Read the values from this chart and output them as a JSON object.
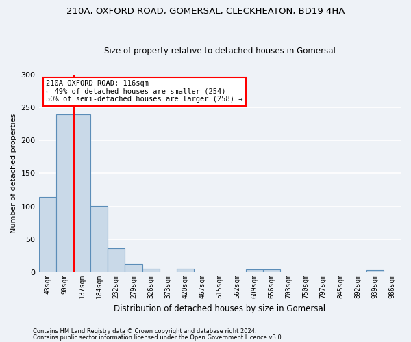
{
  "title": "210A, OXFORD ROAD, GOMERSAL, CLECKHEATON, BD19 4HA",
  "subtitle": "Size of property relative to detached houses in Gomersal",
  "xlabel": "Distribution of detached houses by size in Gomersal",
  "ylabel": "Number of detached properties",
  "categories": [
    "43sqm",
    "90sqm",
    "137sqm",
    "184sqm",
    "232sqm",
    "279sqm",
    "326sqm",
    "373sqm",
    "420sqm",
    "467sqm",
    "515sqm",
    "562sqm",
    "609sqm",
    "656sqm",
    "703sqm",
    "750sqm",
    "797sqm",
    "845sqm",
    "892sqm",
    "939sqm",
    "986sqm"
  ],
  "bar_heights": [
    114,
    239,
    239,
    101,
    36,
    13,
    5,
    0,
    5,
    0,
    0,
    0,
    4,
    4,
    0,
    0,
    0,
    0,
    0,
    3,
    0
  ],
  "bar_color": "#c9d9e8",
  "bar_edge_color": "#5b8db8",
  "vline_x": 1.55,
  "vline_color": "red",
  "annotation_text": "210A OXFORD ROAD: 116sqm\n← 49% of detached houses are smaller (254)\n50% of semi-detached houses are larger (258) →",
  "annotation_box_color": "white",
  "annotation_box_edge_color": "red",
  "ylim": [
    0,
    300
  ],
  "yticks": [
    0,
    50,
    100,
    150,
    200,
    250,
    300
  ],
  "footer_line1": "Contains HM Land Registry data © Crown copyright and database right 2024.",
  "footer_line2": "Contains public sector information licensed under the Open Government Licence v3.0.",
  "bg_color": "#eef2f7",
  "grid_color": "white"
}
